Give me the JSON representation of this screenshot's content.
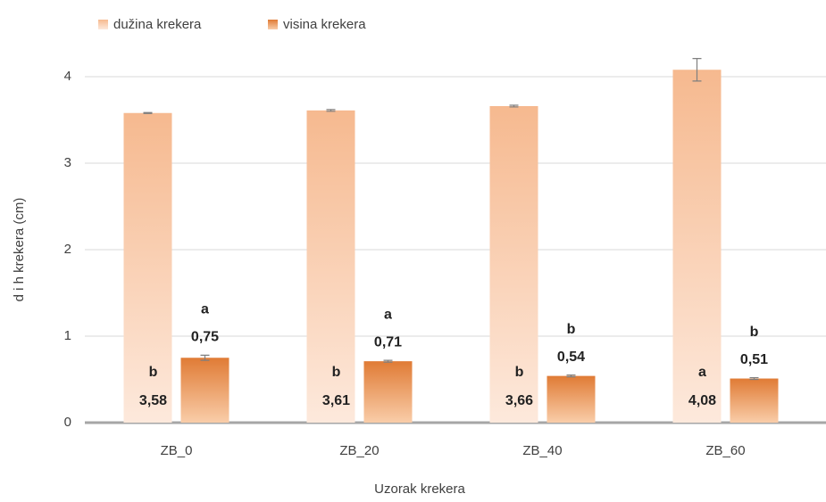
{
  "chart_data": {
    "type": "bar",
    "y_label": "d i h krekera (cm)",
    "x_label": "Uzorak krekera",
    "categories": [
      "ZB_0",
      "ZB_20",
      "ZB_40",
      "ZB_60"
    ],
    "series": [
      {
        "name": "dužina krekera",
        "color": "#f6b98f",
        "values": [
          3.58,
          3.61,
          3.66,
          4.08
        ],
        "value_labels": [
          "3,58",
          "3,61",
          "3,66",
          "4,08"
        ],
        "errors": [
          0.005,
          0.01,
          0.01,
          0.13
        ],
        "letters": [
          "b",
          "b",
          "b",
          "a"
        ]
      },
      {
        "name": "visina krekera",
        "color": "#e07b35",
        "values": [
          0.75,
          0.71,
          0.54,
          0.51
        ],
        "value_labels": [
          "0,75",
          "0,71",
          "0,54",
          "0,51"
        ],
        "errors": [
          0.03,
          0.01,
          0.01,
          0.01
        ],
        "letters": [
          "a",
          "a",
          "b",
          "b"
        ]
      }
    ],
    "ylim": [
      0,
      4.2
    ],
    "yticks": [
      0,
      1,
      2,
      3,
      4
    ],
    "grid": true,
    "legend": "top-left"
  }
}
